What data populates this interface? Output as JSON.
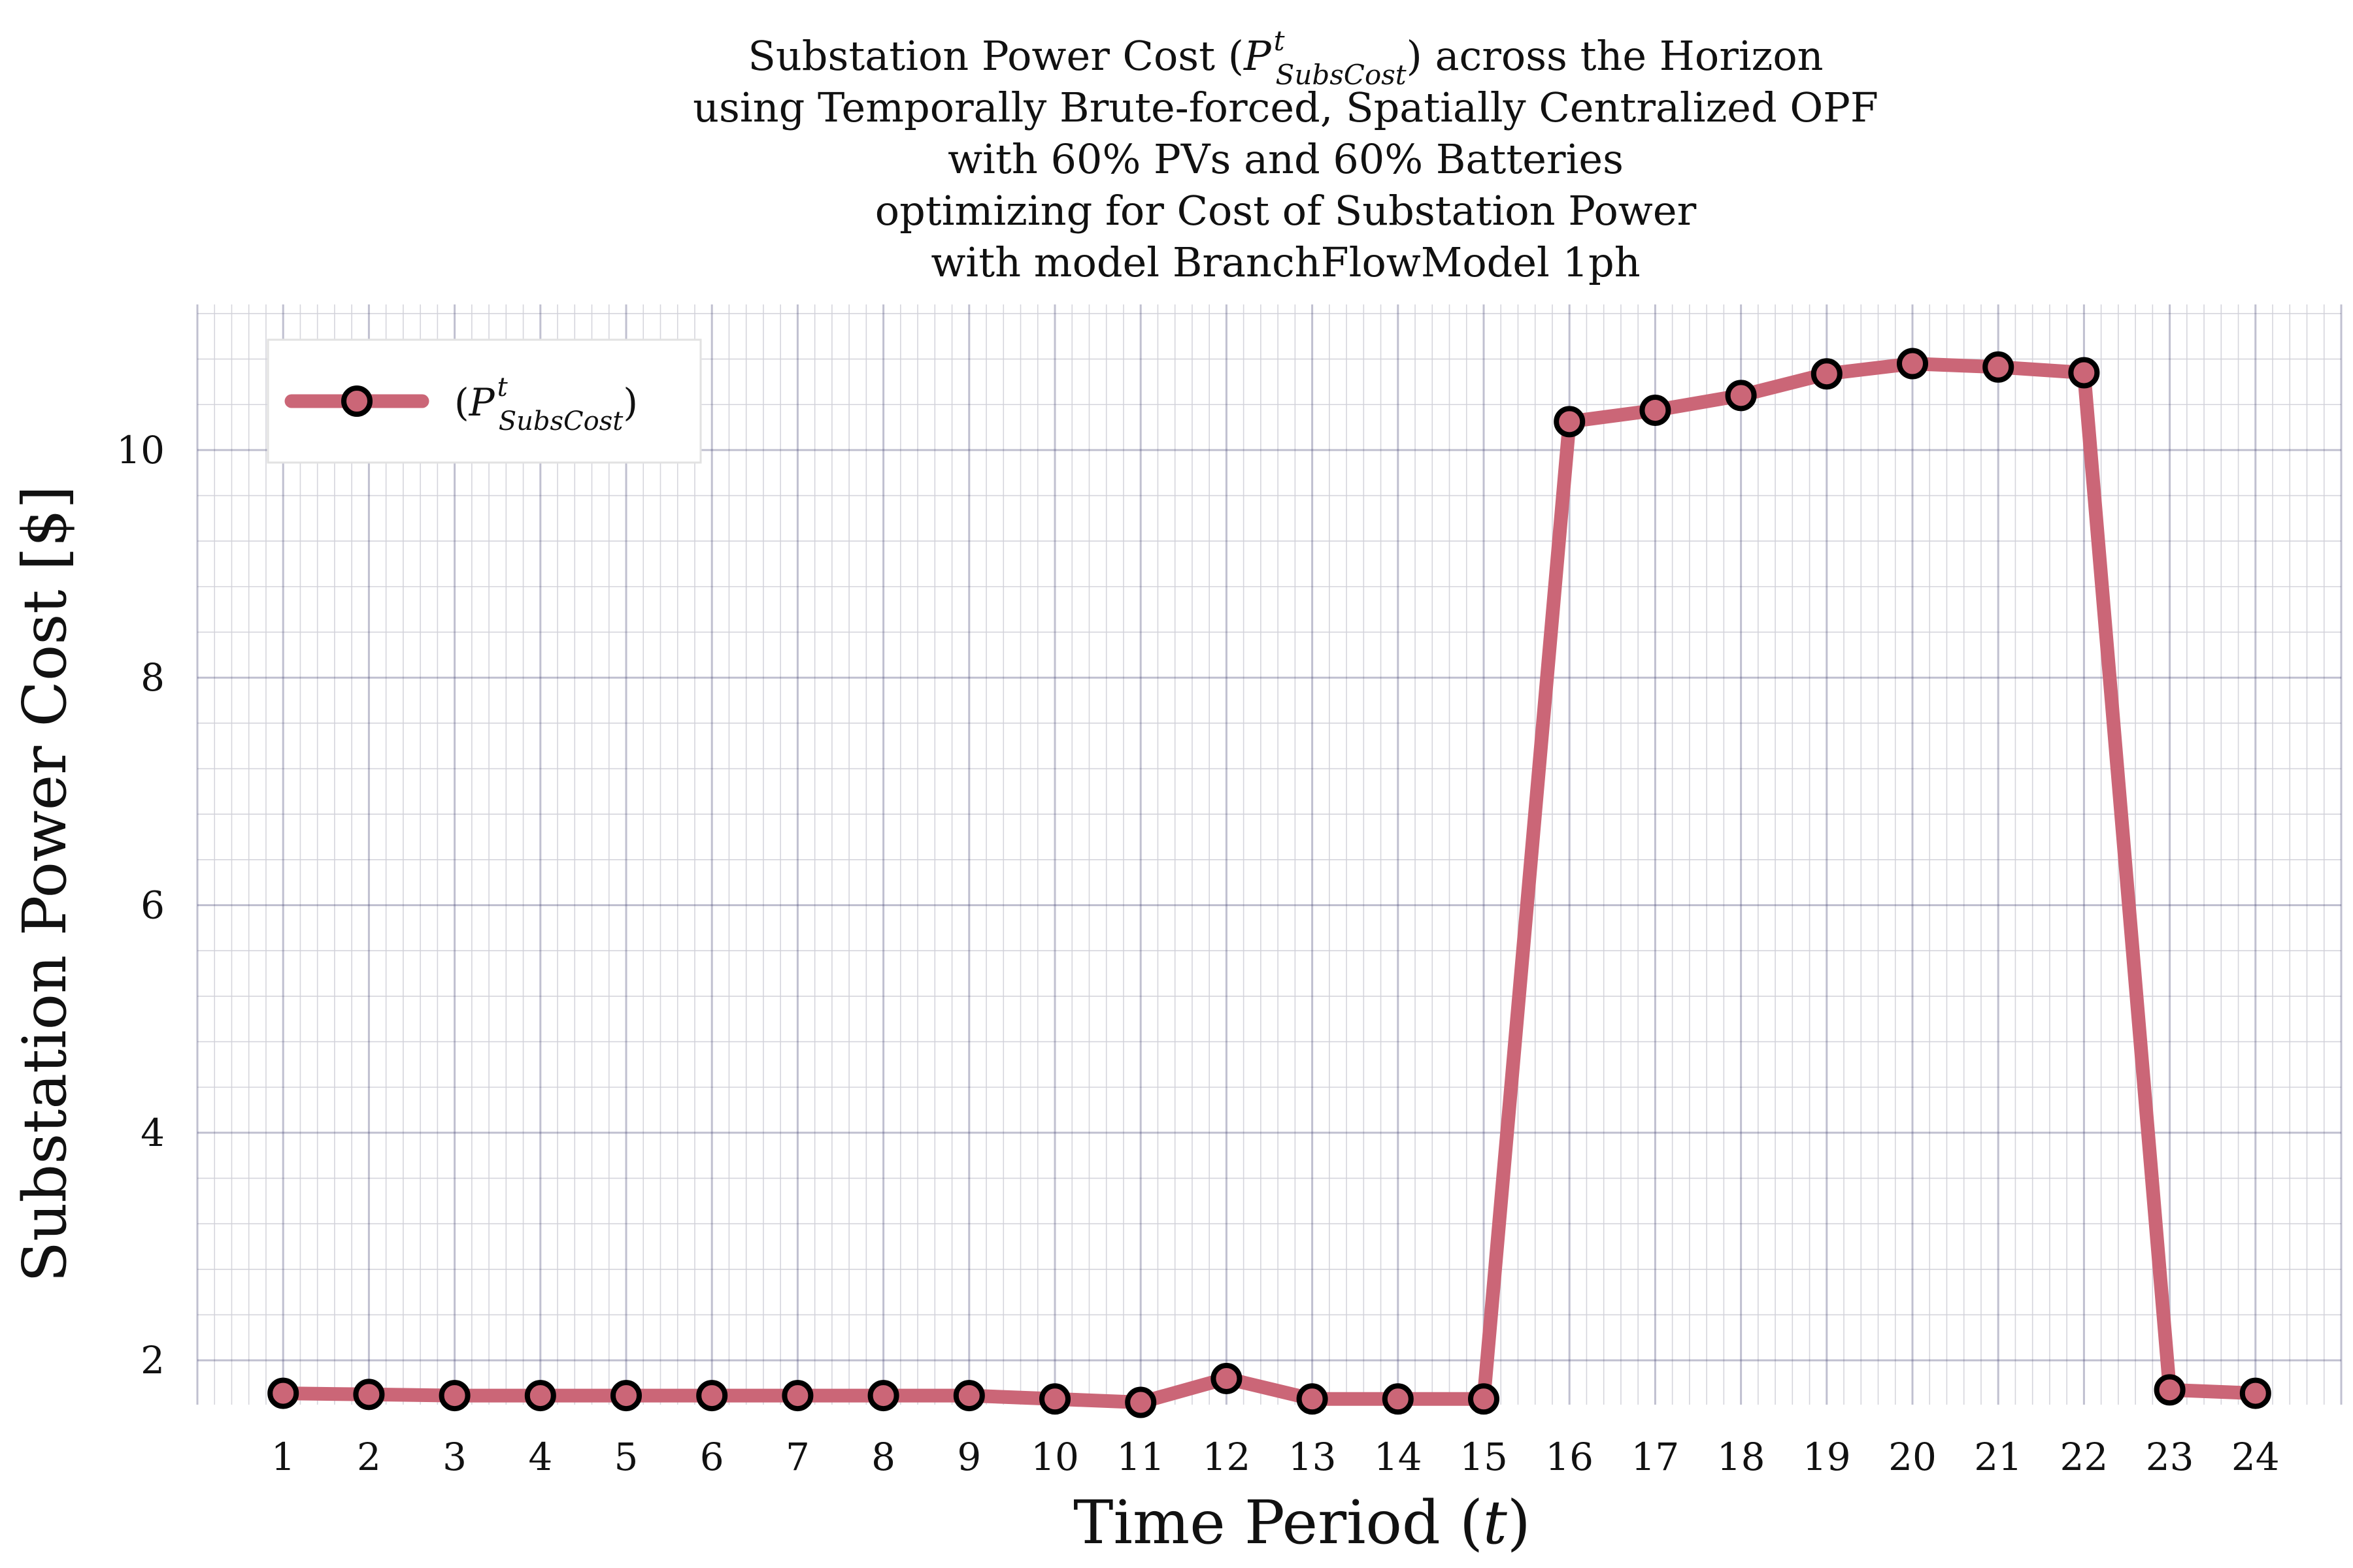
{
  "chart_data": {
    "type": "line",
    "title_lines": [
      {
        "before": "Substation Power Cost (",
        "P": "P",
        "sup": "t",
        "sub": "SubsCost",
        "after": ") across the Horizon"
      },
      {
        "text": "using Temporally Brute-forced, Spatially Centralized OPF"
      },
      {
        "text": "with 60% PVs and 60% Batteries"
      },
      {
        "text": "optimizing for Cost of Substation Power"
      },
      {
        "text": "with model BranchFlowModel 1ph"
      }
    ],
    "xlabel": {
      "before": "Time Period (",
      "var": "t",
      "after": ")"
    },
    "ylabel": "Substation Power Cost [$]",
    "x": [
      1,
      2,
      3,
      4,
      5,
      6,
      7,
      8,
      9,
      10,
      11,
      12,
      13,
      14,
      15,
      16,
      17,
      18,
      19,
      20,
      21,
      22,
      23,
      24
    ],
    "x_ticks": [
      "1",
      "2",
      "3",
      "4",
      "5",
      "6",
      "7",
      "8",
      "9",
      "10",
      "11",
      "12",
      "13",
      "14",
      "15",
      "16",
      "17",
      "18",
      "19",
      "20",
      "21",
      "22",
      "23",
      "24"
    ],
    "y_ticks": [
      2,
      4,
      6,
      8,
      10
    ],
    "y_tick_labels": [
      "2",
      "4",
      "6",
      "8",
      "10"
    ],
    "xlim": [
      0.0,
      25.0
    ],
    "ylim": [
      1.61,
      11.28
    ],
    "grid": true,
    "legend_placement": "top-left",
    "series": [
      {
        "name": {
          "before": "(",
          "P": "P",
          "sup": "t",
          "sub": "SubsCost",
          "after": ")"
        },
        "color": "#cb6677",
        "marker_fill": "#cb6677",
        "marker_edge": "#000000",
        "values": [
          1.71,
          1.7,
          1.69,
          1.69,
          1.69,
          1.69,
          1.69,
          1.69,
          1.69,
          1.66,
          1.63,
          1.84,
          1.66,
          1.66,
          1.66,
          10.25,
          10.35,
          10.48,
          10.67,
          10.76,
          10.73,
          10.68,
          1.74,
          1.71
        ]
      }
    ],
    "colors": {
      "major_grid": "#3a3a6e",
      "minor_grid": "#d0d0d8"
    }
  }
}
